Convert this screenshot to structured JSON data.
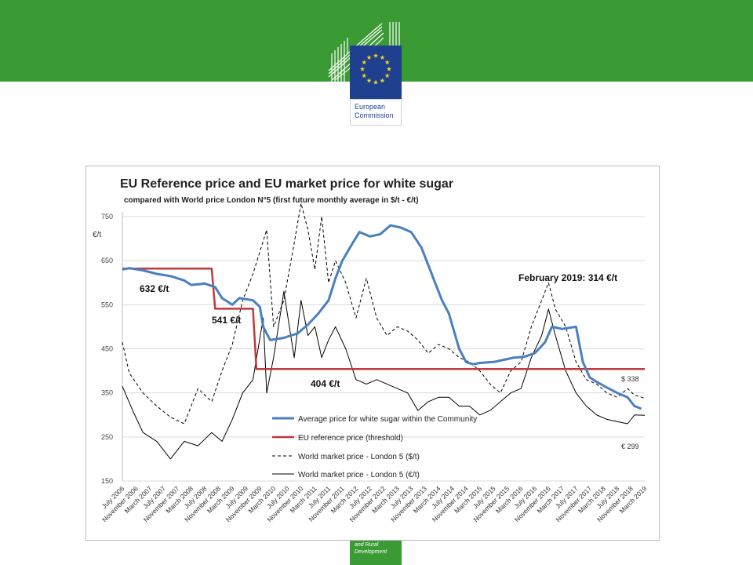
{
  "header": {
    "logo_line1": "European",
    "logo_line2": "Commission",
    "badge_line1": "and Rural",
    "badge_line2": "Development"
  },
  "colors": {
    "brand_green": "#3a9b34",
    "eu_blue": "#1f3f8f",
    "eu_star": "#f2d21b",
    "avg_price": "#4a7fbf",
    "reference": "#c0393b",
    "world": "#000000"
  },
  "chart_data": {
    "type": "line",
    "title": "EU Reference price and EU market price for white sugar",
    "subtitle": "compared with World price London N°5 (first future monthly average in $/t - €/t)",
    "ylabel": "€/t",
    "ylim": [
      150,
      750
    ],
    "yticks": [
      "150",
      "250",
      "350",
      "450",
      "550",
      "650",
      "750"
    ],
    "grid": true,
    "x_range": [
      "2006-07",
      "2019-03"
    ],
    "x_tick_labels": [
      "July 2006",
      "November 2006",
      "March 2007",
      "July 2007",
      "November 2007",
      "March 2008",
      "July 2008",
      "November 2008",
      "March 2009",
      "July 2009",
      "November 2009",
      "March 2010",
      "July 2010",
      "November 2010",
      "March 2011",
      "July 2011",
      "November 2011",
      "March 2012",
      "July 2012",
      "November 2012",
      "March 2013",
      "July 2013",
      "November 2013",
      "March 2014",
      "July 2014",
      "November 2014",
      "March 2015",
      "July 2015",
      "November 2015",
      "March 2016",
      "July 2016",
      "November 2016",
      "March 2017",
      "July 2017",
      "November 2017",
      "March 2018",
      "July 2018",
      "November 2018",
      "March 2019"
    ],
    "annotations": {
      "ref1": "632 €/t",
      "ref2": "541 €/t",
      "ref3": "404 €/t",
      "feb2019": "February 2019: 314 €/t",
      "usd_end": "$ 338",
      "eur_end": "€ 299"
    },
    "series": [
      {
        "name": "Average price for white sugar within the Community",
        "x": [
          "2006-07",
          "2006-09",
          "2007-01",
          "2007-05",
          "2007-09",
          "2008-01",
          "2008-03",
          "2008-07",
          "2008-10",
          "2008-12",
          "2009-03",
          "2009-05",
          "2009-09",
          "2009-11",
          "2009-12",
          "2010-02",
          "2010-06",
          "2010-10",
          "2011-01",
          "2011-04",
          "2011-07",
          "2011-09",
          "2011-11",
          "2012-02",
          "2012-04",
          "2012-07",
          "2012-10",
          "2013-01",
          "2013-04",
          "2013-07",
          "2013-10",
          "2013-12",
          "2014-02",
          "2014-04",
          "2014-06",
          "2014-09",
          "2014-11",
          "2015-01",
          "2015-03",
          "2015-07",
          "2015-10",
          "2016-01",
          "2016-04",
          "2016-07",
          "2016-10",
          "2016-12",
          "2017-03",
          "2017-07",
          "2017-09",
          "2017-11",
          "2018-01",
          "2018-04",
          "2018-07",
          "2018-10",
          "2018-12",
          "2019-02"
        ],
        "values": [
          630,
          633,
          628,
          620,
          615,
          605,
          595,
          598,
          590,
          565,
          550,
          565,
          560,
          545,
          500,
          470,
          475,
          485,
          505,
          530,
          560,
          610,
          650,
          690,
          715,
          705,
          710,
          730,
          725,
          715,
          680,
          640,
          600,
          560,
          530,
          450,
          420,
          415,
          418,
          420,
          425,
          430,
          432,
          440,
          465,
          500,
          495,
          500,
          420,
          385,
          375,
          362,
          350,
          340,
          320,
          314
        ]
      },
      {
        "name": "EU reference price (threshold)",
        "x": [
          "2006-07",
          "2008-09",
          "2008-10",
          "2009-09",
          "2009-10",
          "2019-03"
        ],
        "values": [
          632,
          632,
          541,
          541,
          404,
          404
        ]
      },
      {
        "name": "World market price - London 5 ($/t)",
        "x": [
          "2006-07",
          "2006-09",
          "2007-01",
          "2007-05",
          "2007-09",
          "2008-01",
          "2008-05",
          "2008-09",
          "2008-12",
          "2009-03",
          "2009-06",
          "2009-09",
          "2010-01",
          "2010-03",
          "2010-06",
          "2010-09",
          "2010-11",
          "2011-01",
          "2011-03",
          "2011-05",
          "2011-07",
          "2011-09",
          "2011-12",
          "2012-03",
          "2012-06",
          "2012-09",
          "2012-12",
          "2013-03",
          "2013-06",
          "2013-09",
          "2013-12",
          "2014-03",
          "2014-06",
          "2014-09",
          "2014-12",
          "2015-03",
          "2015-06",
          "2015-09",
          "2015-12",
          "2016-03",
          "2016-06",
          "2016-09",
          "2016-11",
          "2017-01",
          "2017-04",
          "2017-07",
          "2017-10",
          "2018-01",
          "2018-04",
          "2018-07",
          "2018-10",
          "2018-12",
          "2019-03"
        ],
        "values": [
          465,
          395,
          350,
          320,
          295,
          280,
          360,
          330,
          400,
          460,
          560,
          620,
          720,
          500,
          560,
          690,
          780,
          720,
          630,
          750,
          600,
          650,
          600,
          520,
          610,
          520,
          480,
          500,
          490,
          470,
          440,
          460,
          450,
          430,
          420,
          400,
          370,
          350,
          400,
          420,
          500,
          560,
          600,
          540,
          500,
          420,
          380,
          370,
          350,
          340,
          360,
          345,
          338
        ]
      },
      {
        "name": "World market price - London 5 (€/t)",
        "x": [
          "2006-07",
          "2006-10",
          "2007-01",
          "2007-05",
          "2007-09",
          "2008-01",
          "2008-05",
          "2008-09",
          "2008-12",
          "2009-03",
          "2009-06",
          "2009-09",
          "2009-12",
          "2010-01",
          "2010-03",
          "2010-06",
          "2010-09",
          "2010-11",
          "2011-01",
          "2011-03",
          "2011-05",
          "2011-07",
          "2011-09",
          "2011-12",
          "2012-03",
          "2012-06",
          "2012-09",
          "2012-12",
          "2013-03",
          "2013-06",
          "2013-09",
          "2013-12",
          "2014-03",
          "2014-06",
          "2014-09",
          "2014-12",
          "2015-03",
          "2015-06",
          "2015-09",
          "2015-12",
          "2016-03",
          "2016-06",
          "2016-09",
          "2016-11",
          "2017-01",
          "2017-04",
          "2017-07",
          "2017-10",
          "2018-01",
          "2018-04",
          "2018-07",
          "2018-10",
          "2018-12",
          "2019-03"
        ],
        "values": [
          365,
          310,
          260,
          240,
          200,
          240,
          230,
          260,
          240,
          290,
          350,
          380,
          520,
          350,
          430,
          580,
          430,
          560,
          480,
          500,
          430,
          470,
          500,
          450,
          380,
          370,
          380,
          370,
          360,
          350,
          310,
          330,
          340,
          340,
          320,
          320,
          300,
          310,
          330,
          350,
          360,
          430,
          480,
          540,
          480,
          400,
          350,
          320,
          300,
          290,
          285,
          280,
          300,
          299
        ]
      }
    ],
    "legend": "bottom-center"
  }
}
